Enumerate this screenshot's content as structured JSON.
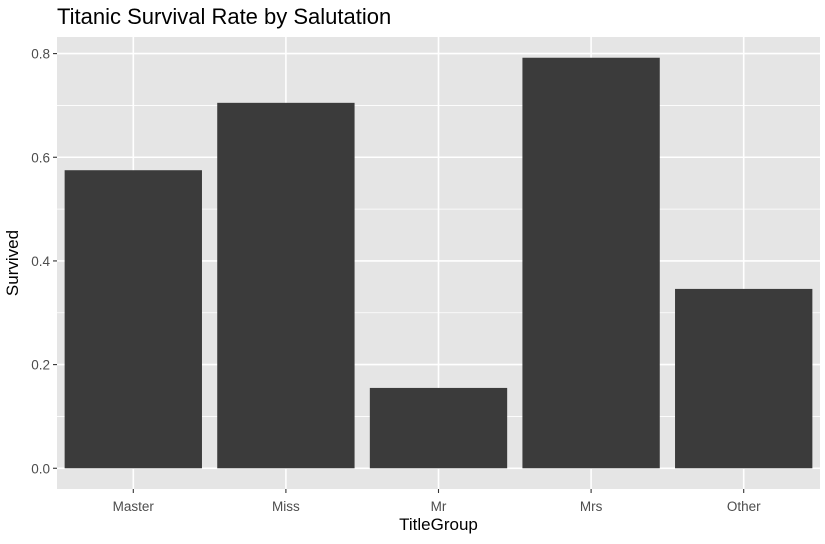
{
  "chart_data": {
    "type": "bar",
    "title": "Titanic Survival Rate by Salutation",
    "xlabel": "TitleGroup",
    "ylabel": "Survived",
    "categories": [
      "Master",
      "Miss",
      "Mr",
      "Mrs",
      "Other"
    ],
    "values": [
      0.575,
      0.705,
      0.155,
      0.792,
      0.346
    ],
    "ylim": [
      -0.04,
      0.832
    ],
    "yticks": [
      0.0,
      0.2,
      0.4,
      0.6,
      0.8
    ],
    "ytick_labels": [
      "0.0",
      "0.2",
      "0.4",
      "0.6",
      "0.8"
    ],
    "grid": true,
    "legend": "none",
    "colors": {
      "bar": "#3b3b3b",
      "panel": "#e5e5e5",
      "grid": "#ffffff",
      "tick_text": "#4d4d4d",
      "tick_mark": "#333333"
    }
  }
}
